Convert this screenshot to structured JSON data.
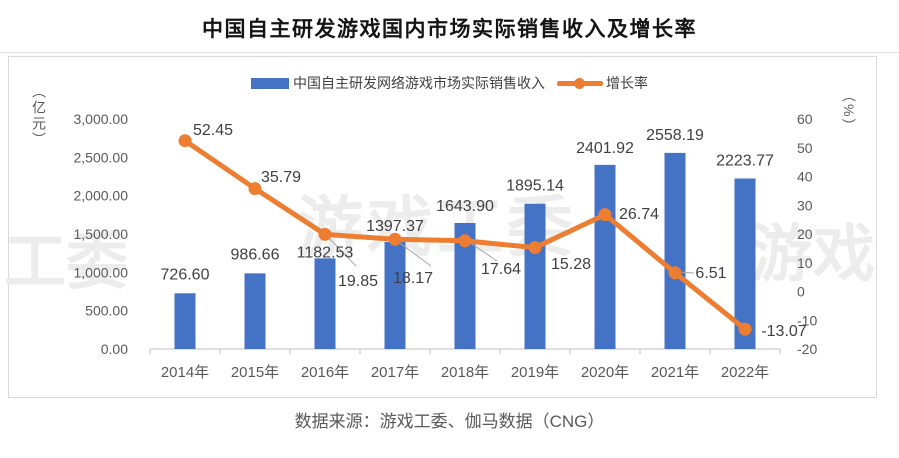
{
  "header": {
    "title": "中国自主研发游戏国内市场实际销售收入及增长率"
  },
  "legend": {
    "revenue": "中国自主研发网络游戏市场实际销售收入",
    "growth": "增长率"
  },
  "watermarks": [
    "工委",
    "游戏工委",
    "游戏"
  ],
  "footer": {
    "source": "数据来源：游戏工委、伽马数据（CNG）"
  },
  "colors": {
    "bar": "#4472C4",
    "line": "#ED7D31",
    "axis_text": "#595959",
    "data_label": "#404040",
    "axis_line": "#BFBFBF",
    "leader": "#A6A6A6",
    "card_border": "#D9D9D9",
    "watermark": "#ECECEC"
  },
  "chart_data": {
    "type": "bar",
    "subtype": "combo-bar-line-dual-axis",
    "title": "中国自主研发游戏国内市场实际销售收入及增长率",
    "categories": [
      "2014年",
      "2015年",
      "2016年",
      "2017年",
      "2018年",
      "2019年",
      "2020年",
      "2021年",
      "2022年"
    ],
    "series": [
      {
        "name": "中国自主研发网络游戏市场实际销售收入",
        "type": "bar",
        "axis": "left",
        "color": "#4472C4",
        "values": [
          726.6,
          986.66,
          1182.53,
          1397.37,
          1643.9,
          1895.14,
          2401.92,
          2558.19,
          2223.77
        ],
        "labels": [
          "726.60",
          "986.66",
          "1182.53",
          "1397.37",
          "1643.90",
          "1895.14",
          "2401.92",
          "2558.19",
          "2223.77"
        ]
      },
      {
        "name": "增长率",
        "type": "line",
        "axis": "right",
        "color": "#ED7D31",
        "values": [
          52.45,
          35.79,
          19.85,
          18.17,
          17.64,
          15.28,
          26.74,
          6.51,
          -13.07
        ],
        "labels": [
          "52.45",
          "35.79",
          "19.85",
          "18.17",
          "17.64",
          "15.28",
          "26.74",
          "6.51",
          "-13.07"
        ]
      }
    ],
    "left_axis": {
      "unit": "（亿元）",
      "min": 0,
      "max": 3000,
      "tick_labels": [
        "3,000.00",
        "2,500.00",
        "2,000.00",
        "1,500.00",
        "1,000.00",
        "500.00",
        "0.00"
      ],
      "tick_values": [
        3000,
        2500,
        2000,
        1500,
        1000,
        500,
        0
      ]
    },
    "right_axis": {
      "unit": "（%）",
      "min": -20,
      "max": 60,
      "tick_labels": [
        "60",
        "50",
        "40",
        "30",
        "20",
        "10",
        "0",
        "-10",
        "-20"
      ],
      "tick_values": [
        60,
        50,
        40,
        30,
        20,
        10,
        0,
        -10,
        -20
      ]
    },
    "grid": false,
    "legend_position": "top",
    "source": "数据来源：游戏工委、伽马数据（CNG）"
  }
}
